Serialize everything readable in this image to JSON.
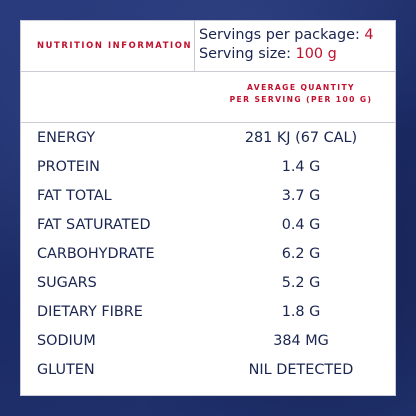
{
  "panel": {
    "title": "NUTRITION INFORMATION",
    "servings_label": "Servings per package:",
    "servings_value": "4",
    "size_label": "Serving size:",
    "size_value": "100 g"
  },
  "header": {
    "line1": "AVERAGE QUANTITY",
    "line2": "PER SERVING (PER 100 G)"
  },
  "rows": [
    {
      "name": "ENERGY",
      "amount": "281 KJ (67 CAL)"
    },
    {
      "name": "PROTEIN",
      "amount": "1.4 G"
    },
    {
      "name": "FAT TOTAL",
      "amount": "3.7 G"
    },
    {
      "name": "FAT SATURATED",
      "amount": "0.4 G"
    },
    {
      "name": "CARBOHYDRATE",
      "amount": "6.2 G"
    },
    {
      "name": "SUGARS",
      "amount": "5.2 G"
    },
    {
      "name": "DIETARY FIBRE",
      "amount": "1.8 G"
    },
    {
      "name": "SODIUM",
      "amount": "384 MG"
    },
    {
      "name": "GLUTEN",
      "amount": "NIL DETECTED"
    }
  ],
  "colors": {
    "background": "#1e2f6a",
    "accent_red": "#c0102d",
    "text_navy": "#1a2550"
  }
}
